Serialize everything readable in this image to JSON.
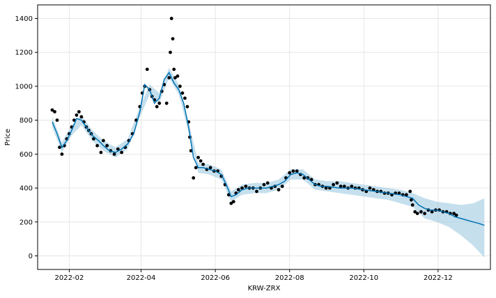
{
  "chart_data": {
    "type": "scatter",
    "title": "",
    "xlabel": "KRW-ZRX",
    "ylabel": "Price",
    "grid": true,
    "x_tick_labels": [
      "2022-02",
      "2022-04",
      "2022-06",
      "2022-08",
      "2022-10",
      "2022-12"
    ],
    "x_ticks": [
      "2022-02-01",
      "2022-04-01",
      "2022-06-01",
      "2022-08-01",
      "2022-10-01",
      "2022-12-01"
    ],
    "y_ticks": [
      0,
      200,
      400,
      600,
      800,
      1000,
      1200,
      1400
    ],
    "xlim": [
      "2022-01-06",
      "2023-01-13"
    ],
    "ylim": [
      -80,
      1480
    ],
    "colors": {
      "observed": "#000000",
      "forecast": "#0072B2",
      "interval": "#9ecae1"
    },
    "series": [
      {
        "kind": "observed",
        "x": [
          "2022-01-18",
          "2022-01-20",
          "2022-01-22",
          "2022-01-24",
          "2022-01-26",
          "2022-01-28",
          "2022-01-30",
          "2022-02-01",
          "2022-02-03",
          "2022-02-05",
          "2022-02-07",
          "2022-02-09",
          "2022-02-11",
          "2022-02-13",
          "2022-02-15",
          "2022-02-17",
          "2022-02-19",
          "2022-02-21",
          "2022-02-24",
          "2022-02-27",
          "2022-03-01",
          "2022-03-04",
          "2022-03-07",
          "2022-03-10",
          "2022-03-13",
          "2022-03-16",
          "2022-03-19",
          "2022-03-22",
          "2022-03-25",
          "2022-03-28",
          "2022-03-31",
          "2022-04-02",
          "2022-04-04",
          "2022-04-06",
          "2022-04-08",
          "2022-04-10",
          "2022-04-12",
          "2022-04-14",
          "2022-04-16",
          "2022-04-18",
          "2022-04-20",
          "2022-04-22",
          "2022-04-24",
          "2022-04-25",
          "2022-04-26",
          "2022-04-27",
          "2022-04-28",
          "2022-04-29",
          "2022-05-01",
          "2022-05-03",
          "2022-05-05",
          "2022-05-07",
          "2022-05-09",
          "2022-05-10",
          "2022-05-11",
          "2022-05-12",
          "2022-05-14",
          "2022-05-16",
          "2022-05-18",
          "2022-05-20",
          "2022-05-22",
          "2022-05-25",
          "2022-05-28",
          "2022-05-31",
          "2022-06-03",
          "2022-06-06",
          "2022-06-09",
          "2022-06-12",
          "2022-06-14",
          "2022-06-16",
          "2022-06-18",
          "2022-06-20",
          "2022-06-23",
          "2022-06-26",
          "2022-06-29",
          "2022-07-02",
          "2022-07-05",
          "2022-07-08",
          "2022-07-11",
          "2022-07-14",
          "2022-07-17",
          "2022-07-20",
          "2022-07-23",
          "2022-07-26",
          "2022-07-29",
          "2022-08-01",
          "2022-08-04",
          "2022-08-07",
          "2022-08-10",
          "2022-08-13",
          "2022-08-16",
          "2022-08-19",
          "2022-08-22",
          "2022-08-25",
          "2022-08-28",
          "2022-08-31",
          "2022-09-03",
          "2022-09-06",
          "2022-09-09",
          "2022-09-12",
          "2022-09-15",
          "2022-09-18",
          "2022-09-21",
          "2022-09-24",
          "2022-09-27",
          "2022-09-30",
          "2022-10-03",
          "2022-10-06",
          "2022-10-09",
          "2022-10-12",
          "2022-10-15",
          "2022-10-18",
          "2022-10-21",
          "2022-10-24",
          "2022-10-27",
          "2022-10-30",
          "2022-11-02",
          "2022-11-05",
          "2022-11-08",
          "2022-11-09",
          "2022-11-10",
          "2022-11-12",
          "2022-11-14",
          "2022-11-17",
          "2022-11-20",
          "2022-11-23",
          "2022-11-26",
          "2022-11-29",
          "2022-12-02",
          "2022-12-05",
          "2022-12-08",
          "2022-12-11",
          "2022-12-14",
          "2022-12-16"
        ],
        "values": [
          860,
          850,
          800,
          640,
          600,
          650,
          690,
          720,
          760,
          800,
          830,
          850,
          820,
          790,
          760,
          740,
          720,
          690,
          650,
          610,
          680,
          650,
          620,
          600,
          630,
          610,
          640,
          680,
          720,
          800,
          880,
          960,
          1000,
          1100,
          980,
          940,
          920,
          880,
          900,
          970,
          1010,
          900,
          1050,
          1200,
          1400,
          1280,
          1100,
          1050,
          1060,
          1000,
          960,
          930,
          880,
          790,
          700,
          620,
          460,
          520,
          580,
          560,
          540,
          510,
          520,
          500,
          500,
          470,
          420,
          360,
          310,
          320,
          370,
          390,
          400,
          410,
          400,
          400,
          380,
          400,
          420,
          430,
          400,
          410,
          390,
          410,
          460,
          490,
          500,
          500,
          480,
          460,
          460,
          450,
          420,
          420,
          410,
          400,
          400,
          420,
          430,
          410,
          410,
          400,
          410,
          400,
          400,
          390,
          380,
          400,
          390,
          380,
          380,
          370,
          370,
          360,
          370,
          370,
          360,
          360,
          380,
          330,
          300,
          260,
          250,
          260,
          250,
          270,
          260,
          270,
          270,
          260,
          260,
          250,
          250,
          240
        ]
      },
      {
        "kind": "forecast",
        "x": [
          "2022-01-18",
          "2022-01-22",
          "2022-01-26",
          "2022-01-30",
          "2022-02-03",
          "2022-02-07",
          "2022-02-11",
          "2022-02-15",
          "2022-02-20",
          "2022-02-25",
          "2022-03-01",
          "2022-03-06",
          "2022-03-11",
          "2022-03-16",
          "2022-03-21",
          "2022-03-26",
          "2022-03-31",
          "2022-04-04",
          "2022-04-08",
          "2022-04-12",
          "2022-04-16",
          "2022-04-20",
          "2022-04-24",
          "2022-04-28",
          "2022-05-02",
          "2022-05-06",
          "2022-05-10",
          "2022-05-14",
          "2022-05-18",
          "2022-05-22",
          "2022-05-27",
          "2022-06-01",
          "2022-06-06",
          "2022-06-10",
          "2022-06-14",
          "2022-06-18",
          "2022-06-23",
          "2022-06-28",
          "2022-07-03",
          "2022-07-08",
          "2022-07-13",
          "2022-07-18",
          "2022-07-23",
          "2022-07-28",
          "2022-08-02",
          "2022-08-07",
          "2022-08-12",
          "2022-08-17",
          "2022-08-22",
          "2022-08-27",
          "2022-09-01",
          "2022-09-06",
          "2022-09-11",
          "2022-09-16",
          "2022-09-21",
          "2022-09-26",
          "2022-10-01",
          "2022-10-06",
          "2022-10-11",
          "2022-10-16",
          "2022-10-21",
          "2022-10-26",
          "2022-10-31",
          "2022-11-05",
          "2022-11-10",
          "2022-11-15",
          "2022-11-20",
          "2022-11-25",
          "2022-11-30",
          "2022-12-05",
          "2022-12-10",
          "2022-12-15",
          "2022-12-20",
          "2022-12-25",
          "2022-12-30",
          "2023-01-04",
          "2023-01-08"
        ],
        "values": [
          790,
          720,
          640,
          680,
          740,
          810,
          800,
          760,
          710,
          680,
          650,
          620,
          610,
          630,
          660,
          720,
          850,
          1010,
          980,
          900,
          930,
          1040,
          1080,
          1020,
          980,
          900,
          760,
          580,
          520,
          520,
          510,
          500,
          480,
          420,
          350,
          360,
          390,
          400,
          400,
          400,
          400,
          410,
          420,
          440,
          480,
          490,
          480,
          450,
          420,
          410,
          410,
          405,
          400,
          400,
          400,
          395,
          390,
          385,
          380,
          375,
          370,
          365,
          360,
          350,
          340,
          300,
          280,
          270,
          270,
          260,
          250,
          230,
          220,
          210,
          200,
          190,
          180
        ]
      },
      {
        "kind": "interval",
        "x": [
          "2022-01-18",
          "2022-01-26",
          "2022-02-03",
          "2022-02-11",
          "2022-02-20",
          "2022-03-01",
          "2022-03-11",
          "2022-03-21",
          "2022-03-31",
          "2022-04-08",
          "2022-04-16",
          "2022-04-24",
          "2022-05-02",
          "2022-05-10",
          "2022-05-18",
          "2022-05-27",
          "2022-06-06",
          "2022-06-14",
          "2022-06-23",
          "2022-07-03",
          "2022-07-13",
          "2022-07-23",
          "2022-08-02",
          "2022-08-12",
          "2022-08-22",
          "2022-09-01",
          "2022-09-11",
          "2022-09-21",
          "2022-10-01",
          "2022-10-11",
          "2022-10-21",
          "2022-10-31",
          "2022-11-10",
          "2022-11-20",
          "2022-11-30",
          "2022-12-10",
          "2022-12-20",
          "2022-12-30",
          "2023-01-08"
        ],
        "lower": [
          760,
          610,
          710,
          770,
          680,
          620,
          580,
          630,
          820,
          950,
          900,
          1050,
          950,
          730,
          490,
          480,
          450,
          320,
          360,
          370,
          370,
          390,
          450,
          450,
          390,
          380,
          370,
          360,
          350,
          340,
          330,
          310,
          290,
          220,
          200,
          170,
          120,
          60,
          -10
        ],
        "upper": [
          820,
          670,
          770,
          830,
          740,
          680,
          640,
          690,
          880,
          1010,
          960,
          1110,
          1010,
          790,
          550,
          540,
          510,
          380,
          420,
          430,
          430,
          450,
          510,
          510,
          450,
          440,
          440,
          430,
          420,
          410,
          400,
          390,
          370,
          340,
          320,
          310,
          300,
          310,
          340
        ]
      }
    ]
  }
}
